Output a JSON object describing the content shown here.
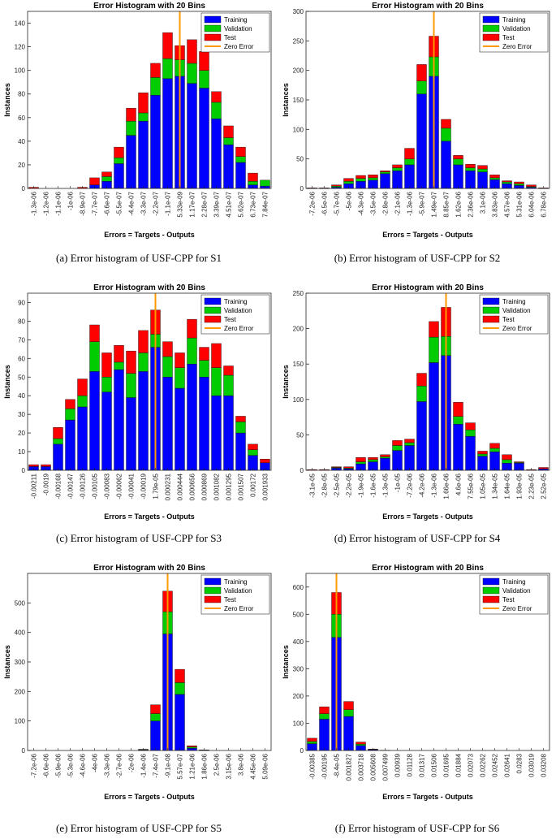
{
  "colors": {
    "training": "#0000ff",
    "validation": "#00cc00",
    "test": "#ff0000",
    "zero_error": "#ff9900",
    "axis": "#262626"
  },
  "chart_data": [
    {
      "id": "S1",
      "type": "bar",
      "stacked": true,
      "title": "Error Histogram with 20 Bins",
      "xlabel": "Errors = Targets - Outputs",
      "ylabel": "Instances",
      "ylim": [
        0,
        150
      ],
      "yticks": [
        0,
        20,
        40,
        60,
        80,
        100,
        120,
        140
      ],
      "categories": [
        "-1.3e-06",
        "-1.2e-06",
        "-1.1e-06",
        "-1e-06",
        "-8.9e-07",
        "-7.7e-07",
        "-6.6e-07",
        "-5.5e-07",
        "-4.4e-07",
        "-3.3e-07",
        "-2.2e-07",
        "-1.1e-07",
        "5.33e-09",
        "1.17e-07",
        "2.28e-07",
        "3.39e-07",
        "4.51e-07",
        "5.62e-07",
        "6.73e-07",
        "7.84e-07"
      ],
      "zero_error_index": 12,
      "legend": [
        "Training",
        "Validation",
        "Test",
        "Zero Error"
      ],
      "series": [
        {
          "name": "Training",
          "values": [
            0,
            0,
            0,
            0,
            0,
            3,
            6,
            21,
            45,
            57,
            79,
            93,
            95,
            89,
            85,
            59,
            37,
            22,
            3,
            2
          ]
        },
        {
          "name": "Validation",
          "values": [
            0,
            0,
            0,
            0,
            0,
            0,
            4,
            5,
            12,
            7,
            15,
            17,
            14,
            17,
            15,
            14,
            6,
            5,
            3,
            5
          ]
        },
        {
          "name": "Test",
          "values": [
            1,
            0,
            0,
            0,
            1,
            6,
            4,
            9,
            11,
            17,
            12,
            22,
            12,
            20,
            16,
            9,
            10,
            8,
            7,
            0
          ]
        }
      ],
      "caption": "(a)  Error histogram of USF-CPP for S1"
    },
    {
      "id": "S2",
      "type": "bar",
      "stacked": true,
      "title": "Error Histogram with 20 Bins",
      "xlabel": "Errors = Targets - Outputs",
      "ylabel": "Instances",
      "ylim": [
        0,
        300
      ],
      "yticks": [
        0,
        50,
        100,
        150,
        200,
        250,
        300
      ],
      "categories": [
        "-7.2e-06",
        "-6.5e-06",
        "-5.7e-06",
        "-5e-06",
        "-4.3e-06",
        "-3.5e-06",
        "-2.8e-06",
        "-2.1e-06",
        "-1.3e-06",
        "-5.9e-07",
        "1.49e-07",
        "8.85e-07",
        "1.62e-06",
        "2.36e-06",
        "3.1e-06",
        "3.83e-06",
        "4.57e-06",
        "5.31e-06",
        "6.04e-06",
        "6.78e-06"
      ],
      "zero_error_index": 10,
      "legend": [
        "Training",
        "Validation",
        "Test",
        "Zero Error"
      ],
      "series": [
        {
          "name": "Training",
          "values": [
            0,
            0,
            2,
            8,
            12,
            14,
            25,
            30,
            40,
            160,
            190,
            80,
            40,
            30,
            28,
            15,
            8,
            5,
            2,
            0
          ]
        },
        {
          "name": "Validation",
          "values": [
            0,
            0,
            2,
            4,
            5,
            4,
            3,
            5,
            10,
            22,
            33,
            22,
            10,
            5,
            5,
            3,
            3,
            3,
            1,
            0
          ]
        },
        {
          "name": "Test",
          "values": [
            1,
            1,
            2,
            5,
            5,
            5,
            2,
            5,
            18,
            28,
            35,
            15,
            6,
            6,
            6,
            5,
            2,
            3,
            3,
            1
          ]
        }
      ],
      "caption": "(b)  Error histogram of USF-CPP for S2"
    },
    {
      "id": "S3",
      "type": "bar",
      "stacked": true,
      "title": "Error Histogram with 20 Bins",
      "xlabel": "Errors = Targets - Outputs",
      "ylabel": "Instances",
      "ylim": [
        0,
        95
      ],
      "yticks": [
        0,
        10,
        20,
        30,
        40,
        50,
        60,
        70,
        80,
        90
      ],
      "categories": [
        "-0.00211",
        "-0.0019",
        "-0.00168",
        "-0.00147",
        "-0.00126",
        "-0.00105",
        "-0.00083",
        "-0.00062",
        "-0.00041",
        "-0.00019",
        "1.79e-05",
        "0.000231",
        "0.000444",
        "0.000656",
        "0.000869",
        "0.001082",
        "0.001295",
        "0.001507",
        "0.00172",
        "0.001933"
      ],
      "zero_error_index": 10,
      "legend": [
        "Training",
        "Validation",
        "Test",
        "Zero Error"
      ],
      "series": [
        {
          "name": "Training",
          "values": [
            2,
            2,
            14,
            27,
            34,
            53,
            42,
            54,
            39,
            53,
            66,
            50,
            44,
            57,
            50,
            40,
            40,
            20,
            8,
            4
          ]
        },
        {
          "name": "Validation",
          "values": [
            0,
            0,
            3,
            6,
            6,
            16,
            8,
            4,
            13,
            10,
            7,
            11,
            11,
            14,
            9,
            15,
            11,
            6,
            3,
            0
          ]
        },
        {
          "name": "Test",
          "values": [
            1,
            1,
            6,
            5,
            9,
            9,
            13,
            9,
            12,
            12,
            13,
            8,
            8,
            10,
            7,
            13,
            5,
            3,
            3,
            2
          ]
        }
      ],
      "caption": "(c)  Error histogram of USF-CPP for S3"
    },
    {
      "id": "S4",
      "type": "bar",
      "stacked": true,
      "title": "Error Histogram with 20 Bins",
      "xlabel": "Errors = Targets - Outputs",
      "ylabel": "Instances",
      "ylim": [
        0,
        250
      ],
      "yticks": [
        0,
        50,
        100,
        150,
        200,
        250
      ],
      "categories": [
        "-3.1e-05",
        "-2.8e-05",
        "-2.5e-05",
        "-2.2e-05",
        "-1.9e-05",
        "-1.6e-05",
        "-1.3e-05",
        "-1e-05",
        "-7.2e-06",
        "-4.2e-06",
        "-1.3e-06",
        "1.66e-06",
        "4.6e-06",
        "7.55e-06",
        "1.05e-05",
        "1.34e-05",
        "1.64e-05",
        "1.93e-05",
        "2.23e-05",
        "2.52e-05"
      ],
      "zero_error_index": 11,
      "legend": [
        "Training",
        "Validation",
        "Test",
        "Zero Error"
      ],
      "series": [
        {
          "name": "Training",
          "values": [
            0,
            0,
            3,
            2,
            9,
            12,
            17,
            28,
            35,
            97,
            152,
            162,
            65,
            48,
            20,
            26,
            10,
            10,
            0,
            2
          ]
        },
        {
          "name": "Validation",
          "values": [
            0,
            0,
            1,
            1,
            3,
            3,
            2,
            7,
            4,
            22,
            36,
            27,
            11,
            9,
            3,
            5,
            5,
            1,
            0,
            0
          ]
        },
        {
          "name": "Test",
          "values": [
            1,
            1,
            1,
            2,
            6,
            3,
            3,
            7,
            5,
            18,
            22,
            41,
            20,
            10,
            4,
            7,
            7,
            1,
            1,
            2
          ]
        }
      ],
      "caption": "(d)  Error histogram of USF-CPP for S4"
    },
    {
      "id": "S5",
      "type": "bar",
      "stacked": true,
      "title": "Error Histogram with 20 Bins",
      "xlabel": "Errors = Targets - Outputs",
      "ylabel": "Instances",
      "ylim": [
        0,
        600
      ],
      "yticks": [
        0,
        100,
        200,
        300,
        400,
        500
      ],
      "categories": [
        "-7.2e-06",
        "-6.6e-06",
        "-5.9e-06",
        "-5.3e-06",
        "-4.6e-06",
        "-4e-06",
        "-3.3e-06",
        "-2.7e-06",
        "-2e-06",
        "-1.4e-06",
        "-7.4e-07",
        "-9.1e-08",
        "5.57e-07",
        "1.21e-06",
        "1.86e-06",
        "2.5e-06",
        "3.15e-06",
        "3.8e-06",
        "4.45e-06",
        "5.09e-06"
      ],
      "zero_error_index": 11,
      "legend": [
        "Training",
        "Validation",
        "Test",
        "Zero Error"
      ],
      "series": [
        {
          "name": "Training",
          "values": [
            0,
            0,
            0,
            0,
            0,
            0,
            0,
            0,
            0,
            2,
            100,
            395,
            190,
            8,
            1,
            0,
            0,
            0,
            0,
            0
          ]
        },
        {
          "name": "Validation",
          "values": [
            0,
            0,
            0,
            0,
            0,
            0,
            0,
            0,
            0,
            1,
            25,
            75,
            40,
            4,
            0,
            0,
            0,
            0,
            0,
            0
          ]
        },
        {
          "name": "Test",
          "values": [
            0,
            0,
            0,
            0,
            0,
            0,
            0,
            0,
            0,
            1,
            30,
            70,
            45,
            4,
            1,
            0,
            0,
            0,
            0,
            0
          ]
        }
      ],
      "caption": "(e)  Error histogram of USF-CPP for S5"
    },
    {
      "id": "S6",
      "type": "bar",
      "stacked": true,
      "title": "Error Histogram with 20 Bins",
      "xlabel": "Errors = Targets - Outputs",
      "ylabel": "Instances",
      "ylim": [
        0,
        650
      ],
      "yticks": [
        0,
        100,
        200,
        300,
        400,
        500,
        600
      ],
      "categories": [
        "-0.00385",
        "-0.00195",
        "-8.4e-05",
        "0.001827",
        "0.003718",
        "0.005608",
        "0.007499",
        "0.00939",
        "0.01128",
        "0.01317",
        "0.01506",
        "0.01695",
        "0.01884",
        "0.02073",
        "0.02262",
        "0.02452",
        "0.02641",
        "0.0283",
        "0.03019",
        "0.03208"
      ],
      "zero_error_index": 2,
      "legend": [
        "Training",
        "Validation",
        "Test",
        "Zero Error"
      ],
      "series": [
        {
          "name": "Training",
          "values": [
            25,
            115,
            415,
            125,
            18,
            3,
            1,
            0,
            0,
            0,
            0,
            0,
            0,
            0,
            0,
            0,
            0,
            0,
            0,
            0
          ]
        },
        {
          "name": "Validation",
          "values": [
            8,
            20,
            85,
            25,
            5,
            1,
            0,
            0,
            0,
            0,
            0,
            0,
            0,
            0,
            0,
            0,
            0,
            0,
            0,
            0
          ]
        },
        {
          "name": "Test",
          "values": [
            12,
            25,
            80,
            30,
            8,
            1,
            0,
            0,
            0,
            0,
            0,
            0,
            0,
            0,
            0,
            0,
            0,
            0,
            0,
            0
          ]
        }
      ],
      "caption": "(f)  Error histogram of USF-CPP for S6"
    }
  ]
}
